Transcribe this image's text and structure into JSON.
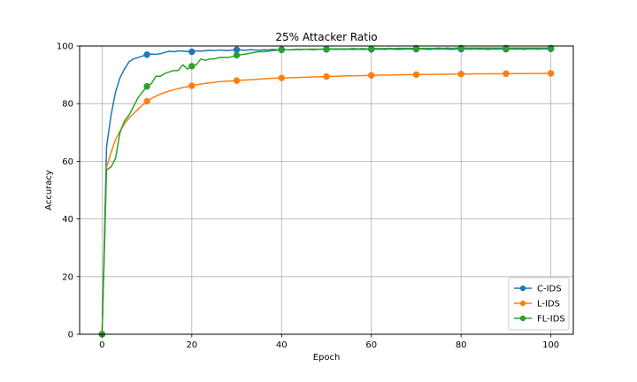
{
  "chart_data": {
    "type": "line",
    "title": "25% Attacker Ratio",
    "xlabel": "Epoch",
    "ylabel": "Accuracy",
    "xlim": [
      -5,
      105
    ],
    "ylim": [
      0,
      100
    ],
    "xticks": [
      0,
      20,
      40,
      60,
      80,
      100
    ],
    "yticks": [
      0,
      20,
      40,
      60,
      80,
      100
    ],
    "grid": true,
    "legend_position": "lower-right",
    "series": [
      {
        "name": "C-IDS",
        "color": "#1f77b4",
        "marker_every": 10,
        "values": [
          0,
          65,
          76,
          84,
          89,
          92,
          94.5,
          95.5,
          96,
          96.5,
          97,
          97.2,
          97.1,
          97.3,
          97.8,
          98.2,
          98,
          98.3,
          98.2,
          98.1,
          98,
          98.3,
          98.2,
          98.4,
          98.5,
          98.4,
          98.6,
          98.5,
          98.4,
          98.6,
          98.7,
          98.6,
          98.5,
          98.7,
          98.6,
          98.5,
          98.7,
          98.6,
          98.8,
          98.7,
          98.8,
          98.7,
          98.6,
          98.8,
          98.7,
          98.9,
          98.8,
          98.7,
          98.8,
          98.9,
          98.8,
          98.9,
          98.8,
          98.9,
          98.8,
          98.9,
          98.8,
          98.9,
          98.8,
          98.9,
          98.8,
          98.9,
          98.9,
          98.8,
          99,
          98.9,
          98.8,
          98.9,
          99,
          98.9,
          98.9,
          99,
          98.9,
          98.8,
          99,
          98.9,
          99,
          98.9,
          98.8,
          99,
          98.9,
          99,
          98.9,
          99,
          98.9,
          99,
          98.8,
          99,
          98.9,
          99,
          98.9,
          99,
          98.9,
          99,
          98.8,
          99,
          99,
          98.9,
          99,
          99,
          99
        ]
      },
      {
        "name": "L-IDS",
        "color": "#ff7f0e",
        "marker_every": 10,
        "values": [
          0,
          58,
          63,
          67.5,
          70.5,
          73,
          75,
          76.5,
          78,
          79.5,
          80.8,
          81.8,
          82.6,
          83.3,
          83.9,
          84.4,
          84.8,
          85.2,
          85.6,
          85.9,
          86.2,
          86.5,
          86.8,
          87,
          87.2,
          87.4,
          87.6,
          87.7,
          87.8,
          87.9,
          88,
          88.1,
          88.2,
          88.3,
          88.4,
          88.5,
          88.6,
          88.7,
          88.8,
          88.85,
          88.9,
          88.95,
          89,
          89.05,
          89.1,
          89.15,
          89.2,
          89.25,
          89.3,
          89.35,
          89.4,
          89.45,
          89.5,
          89.55,
          89.6,
          89.63,
          89.66,
          89.7,
          89.73,
          89.76,
          89.8,
          89.83,
          89.86,
          89.9,
          89.93,
          89.96,
          90,
          90.02,
          90.04,
          90.06,
          90.08,
          90.1,
          90.12,
          90.14,
          90.16,
          90.18,
          90.2,
          90.22,
          90.24,
          90.26,
          90.28,
          90.3,
          90.31,
          90.32,
          90.33,
          90.34,
          90.35,
          90.36,
          90.37,
          90.38,
          90.39,
          90.4,
          90.41,
          90.42,
          90.43,
          90.44,
          90.45,
          90.46,
          90.47,
          90.48,
          90.5
        ]
      },
      {
        "name": "FL-IDS",
        "color": "#2ca02c",
        "marker_every": 10,
        "values": [
          0,
          57,
          58,
          61,
          70,
          74,
          76,
          79,
          82,
          84,
          86,
          87,
          89.5,
          89.5,
          90.5,
          91,
          91.5,
          91.5,
          93.5,
          92,
          93,
          93.5,
          95.5,
          95,
          95.5,
          95.5,
          96,
          96,
          96,
          96.3,
          96.8,
          97,
          97.2,
          97.5,
          97.8,
          98,
          98,
          98.2,
          98.4,
          98.5,
          98.6,
          98.7,
          98.7,
          98.8,
          98.8,
          98.8,
          98.9,
          98.9,
          98.9,
          98.9,
          99,
          99,
          99,
          99,
          99,
          99,
          99.1,
          99,
          99.1,
          99,
          99.1,
          99.1,
          99.1,
          99.1,
          99.2,
          99.1,
          99.2,
          99.2,
          99.2,
          99.2,
          99.2,
          99.2,
          99.2,
          99.2,
          99.2,
          99.3,
          99.2,
          99.3,
          99.2,
          99.3,
          99.3,
          99.3,
          99.3,
          99.3,
          99.3,
          99.3,
          99.3,
          99.3,
          99.3,
          99.3,
          99.3,
          99.3,
          99.3,
          99.3,
          99.3,
          99.3,
          99.3,
          99.3,
          99.3,
          99.3,
          99.3
        ]
      }
    ]
  }
}
